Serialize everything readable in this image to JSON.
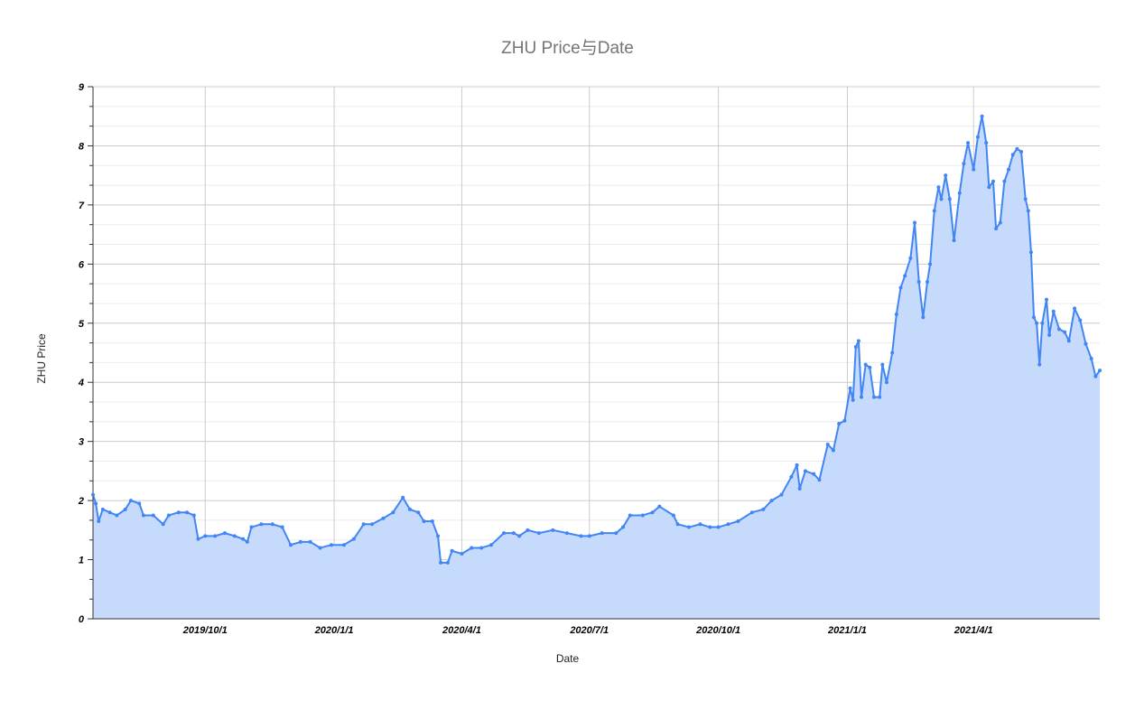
{
  "chart_data": {
    "type": "area",
    "title": "ZHU Price与Date",
    "xlabel": "Date",
    "ylabel": "ZHU Price",
    "ylim": [
      0,
      9
    ],
    "y_ticks": [
      "0",
      "1",
      "2",
      "3",
      "4",
      "5",
      "6",
      "7",
      "8",
      "9"
    ],
    "x_ticks": [
      "2019/10/1",
      "2020/1/1",
      "2020/4/1",
      "2020/7/1",
      "2020/10/1",
      "2021/1/1",
      "2021/4/1"
    ],
    "xlim": [
      "2019/7/13",
      "2021/6/30"
    ],
    "grid": true,
    "legend": "none",
    "colors": {
      "line": "#4285f4",
      "fill": "#c6dafc",
      "grid": "#cccccc",
      "title": "#757575"
    },
    "series": [
      {
        "points": [
          [
            "2019/7/13",
            2.1
          ],
          [
            "2019/7/15",
            1.95
          ],
          [
            "2019/7/17",
            1.65
          ],
          [
            "2019/7/20",
            1.85
          ],
          [
            "2019/7/25",
            1.8
          ],
          [
            "2019/7/30",
            1.75
          ],
          [
            "2019/8/5",
            1.85
          ],
          [
            "2019/8/9",
            2.0
          ],
          [
            "2019/8/15",
            1.95
          ],
          [
            "2019/8/18",
            1.75
          ],
          [
            "2019/8/25",
            1.75
          ],
          [
            "2019/9/1",
            1.6
          ],
          [
            "2019/9/5",
            1.75
          ],
          [
            "2019/9/12",
            1.8
          ],
          [
            "2019/9/18",
            1.8
          ],
          [
            "2019/9/23",
            1.75
          ],
          [
            "2019/9/26",
            1.35
          ],
          [
            "2019/10/1",
            1.4
          ],
          [
            "2019/10/8",
            1.4
          ],
          [
            "2019/10/15",
            1.45
          ],
          [
            "2019/10/22",
            1.4
          ],
          [
            "2019/10/28",
            1.35
          ],
          [
            "2019/10/31",
            1.3
          ],
          [
            "2019/11/3",
            1.55
          ],
          [
            "2019/11/10",
            1.6
          ],
          [
            "2019/11/18",
            1.6
          ],
          [
            "2019/11/25",
            1.55
          ],
          [
            "2019/12/1",
            1.25
          ],
          [
            "2019/12/8",
            1.3
          ],
          [
            "2019/12/15",
            1.3
          ],
          [
            "2019/12/22",
            1.2
          ],
          [
            "2019/12/30",
            1.25
          ],
          [
            "2020/1/8",
            1.25
          ],
          [
            "2020/1/15",
            1.35
          ],
          [
            "2020/1/22",
            1.6
          ],
          [
            "2020/1/28",
            1.6
          ],
          [
            "2020/2/5",
            1.7
          ],
          [
            "2020/2/12",
            1.8
          ],
          [
            "2020/2/19",
            2.05
          ],
          [
            "2020/2/24",
            1.85
          ],
          [
            "2020/3/1",
            1.8
          ],
          [
            "2020/3/5",
            1.65
          ],
          [
            "2020/3/11",
            1.65
          ],
          [
            "2020/3/15",
            1.4
          ],
          [
            "2020/3/17",
            0.95
          ],
          [
            "2020/3/22",
            0.95
          ],
          [
            "2020/3/25",
            1.15
          ],
          [
            "2020/4/1",
            1.1
          ],
          [
            "2020/4/8",
            1.2
          ],
          [
            "2020/4/15",
            1.2
          ],
          [
            "2020/4/22",
            1.25
          ],
          [
            "2020/5/1",
            1.45
          ],
          [
            "2020/5/8",
            1.45
          ],
          [
            "2020/5/12",
            1.4
          ],
          [
            "2020/5/18",
            1.5
          ],
          [
            "2020/5/26",
            1.45
          ],
          [
            "2020/6/5",
            1.5
          ],
          [
            "2020/6/15",
            1.45
          ],
          [
            "2020/6/25",
            1.4
          ],
          [
            "2020/7/1",
            1.4
          ],
          [
            "2020/7/10",
            1.45
          ],
          [
            "2020/7/20",
            1.45
          ],
          [
            "2020/7/25",
            1.55
          ],
          [
            "2020/7/30",
            1.75
          ],
          [
            "2020/8/8",
            1.75
          ],
          [
            "2020/8/15",
            1.8
          ],
          [
            "2020/8/20",
            1.9
          ],
          [
            "2020/8/30",
            1.75
          ],
          [
            "2020/9/2",
            1.6
          ],
          [
            "2020/9/10",
            1.55
          ],
          [
            "2020/9/18",
            1.6
          ],
          [
            "2020/9/25",
            1.55
          ],
          [
            "2020/10/1",
            1.55
          ],
          [
            "2020/10/8",
            1.6
          ],
          [
            "2020/10/15",
            1.65
          ],
          [
            "2020/10/25",
            1.8
          ],
          [
            "2020/11/2",
            1.85
          ],
          [
            "2020/11/8",
            2.0
          ],
          [
            "2020/11/15",
            2.1
          ],
          [
            "2020/11/22",
            2.4
          ],
          [
            "2020/11/26",
            2.6
          ],
          [
            "2020/11/28",
            2.2
          ],
          [
            "2020/12/2",
            2.5
          ],
          [
            "2020/12/8",
            2.45
          ],
          [
            "2020/12/12",
            2.35
          ],
          [
            "2020/12/18",
            2.95
          ],
          [
            "2020/12/22",
            2.85
          ],
          [
            "2020/12/26",
            3.3
          ],
          [
            "2020/12/30",
            3.35
          ],
          [
            "2021/1/3",
            3.9
          ],
          [
            "2021/1/5",
            3.7
          ],
          [
            "2021/1/7",
            4.6
          ],
          [
            "2021/1/9",
            4.7
          ],
          [
            "2021/1/11",
            3.75
          ],
          [
            "2021/1/14",
            4.3
          ],
          [
            "2021/1/17",
            4.25
          ],
          [
            "2021/1/20",
            3.75
          ],
          [
            "2021/1/24",
            3.75
          ],
          [
            "2021/1/26",
            4.3
          ],
          [
            "2021/1/29",
            4.0
          ],
          [
            "2021/2/2",
            4.5
          ],
          [
            "2021/2/5",
            5.15
          ],
          [
            "2021/2/8",
            5.6
          ],
          [
            "2021/2/11",
            5.8
          ],
          [
            "2021/2/15",
            6.1
          ],
          [
            "2021/2/18",
            6.7
          ],
          [
            "2021/2/21",
            5.7
          ],
          [
            "2021/2/24",
            5.1
          ],
          [
            "2021/2/27",
            5.7
          ],
          [
            "2021/3/1",
            6.0
          ],
          [
            "2021/3/4",
            6.9
          ],
          [
            "2021/3/7",
            7.3
          ],
          [
            "2021/3/9",
            7.1
          ],
          [
            "2021/3/12",
            7.5
          ],
          [
            "2021/3/15",
            7.1
          ],
          [
            "2021/3/18",
            6.4
          ],
          [
            "2021/3/22",
            7.2
          ],
          [
            "2021/3/25",
            7.7
          ],
          [
            "2021/3/28",
            8.05
          ],
          [
            "2021/4/1",
            7.6
          ],
          [
            "2021/4/4",
            8.15
          ],
          [
            "2021/4/7",
            8.5
          ],
          [
            "2021/4/10",
            8.05
          ],
          [
            "2021/4/12",
            7.3
          ],
          [
            "2021/4/15",
            7.4
          ],
          [
            "2021/4/17",
            6.6
          ],
          [
            "2021/4/20",
            6.7
          ],
          [
            "2021/4/23",
            7.4
          ],
          [
            "2021/4/26",
            7.6
          ],
          [
            "2021/4/29",
            7.85
          ],
          [
            "2021/5/2",
            7.95
          ],
          [
            "2021/5/5",
            7.9
          ],
          [
            "2021/5/8",
            7.1
          ],
          [
            "2021/5/10",
            6.9
          ],
          [
            "2021/5/12",
            6.2
          ],
          [
            "2021/5/14",
            5.1
          ],
          [
            "2021/5/16",
            5.0
          ],
          [
            "2021/5/18",
            4.3
          ],
          [
            "2021/5/20",
            5.0
          ],
          [
            "2021/5/23",
            5.4
          ],
          [
            "2021/5/25",
            4.8
          ],
          [
            "2021/5/28",
            5.2
          ],
          [
            "2021/6/1",
            4.9
          ],
          [
            "2021/6/5",
            4.85
          ],
          [
            "2021/6/8",
            4.7
          ],
          [
            "2021/6/12",
            5.25
          ],
          [
            "2021/6/16",
            5.05
          ],
          [
            "2021/6/20",
            4.65
          ],
          [
            "2021/6/24",
            4.4
          ],
          [
            "2021/6/27",
            4.1
          ],
          [
            "2021/6/30",
            4.2
          ]
        ]
      }
    ]
  }
}
